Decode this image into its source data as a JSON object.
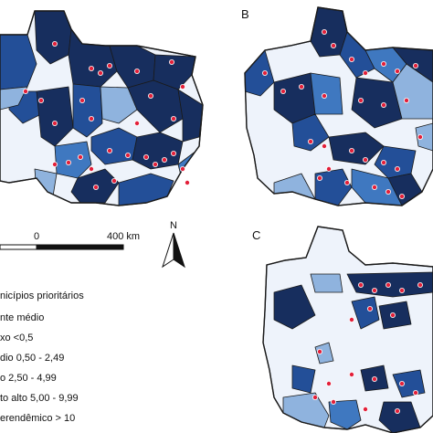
{
  "panels": {
    "a": {
      "letter": ""
    },
    "b": {
      "letter": "B"
    },
    "c": {
      "letter": "C"
    }
  },
  "scalebar": {
    "zero_label": "0",
    "end_label": "400 km"
  },
  "north_arrow": {
    "label": "N"
  },
  "legend": {
    "priority_label": "nicípios prioritários",
    "group_title": "nte médio",
    "classes": [
      {
        "label": "xo <0,5",
        "color": "#eef3fb"
      },
      {
        "label": "dio 0,50 - 2,49",
        "color": "#8fb3de"
      },
      {
        "label": "o 2,50 - 4,99",
        "color": "#3f78c0"
      },
      {
        "label": "to alto 5,00 - 9,99",
        "color": "#234f98"
      },
      {
        "label": "erendêmico > 10",
        "color": "#172e5e"
      }
    ]
  },
  "colors": {
    "outline": "#1a1a1a",
    "priority_dot": "#e3203a",
    "very_high": "#234f98",
    "hyperendemic": "#172e5e",
    "high": "#3f78c0",
    "medium": "#8fb3de",
    "low": "#eef3fb"
  }
}
